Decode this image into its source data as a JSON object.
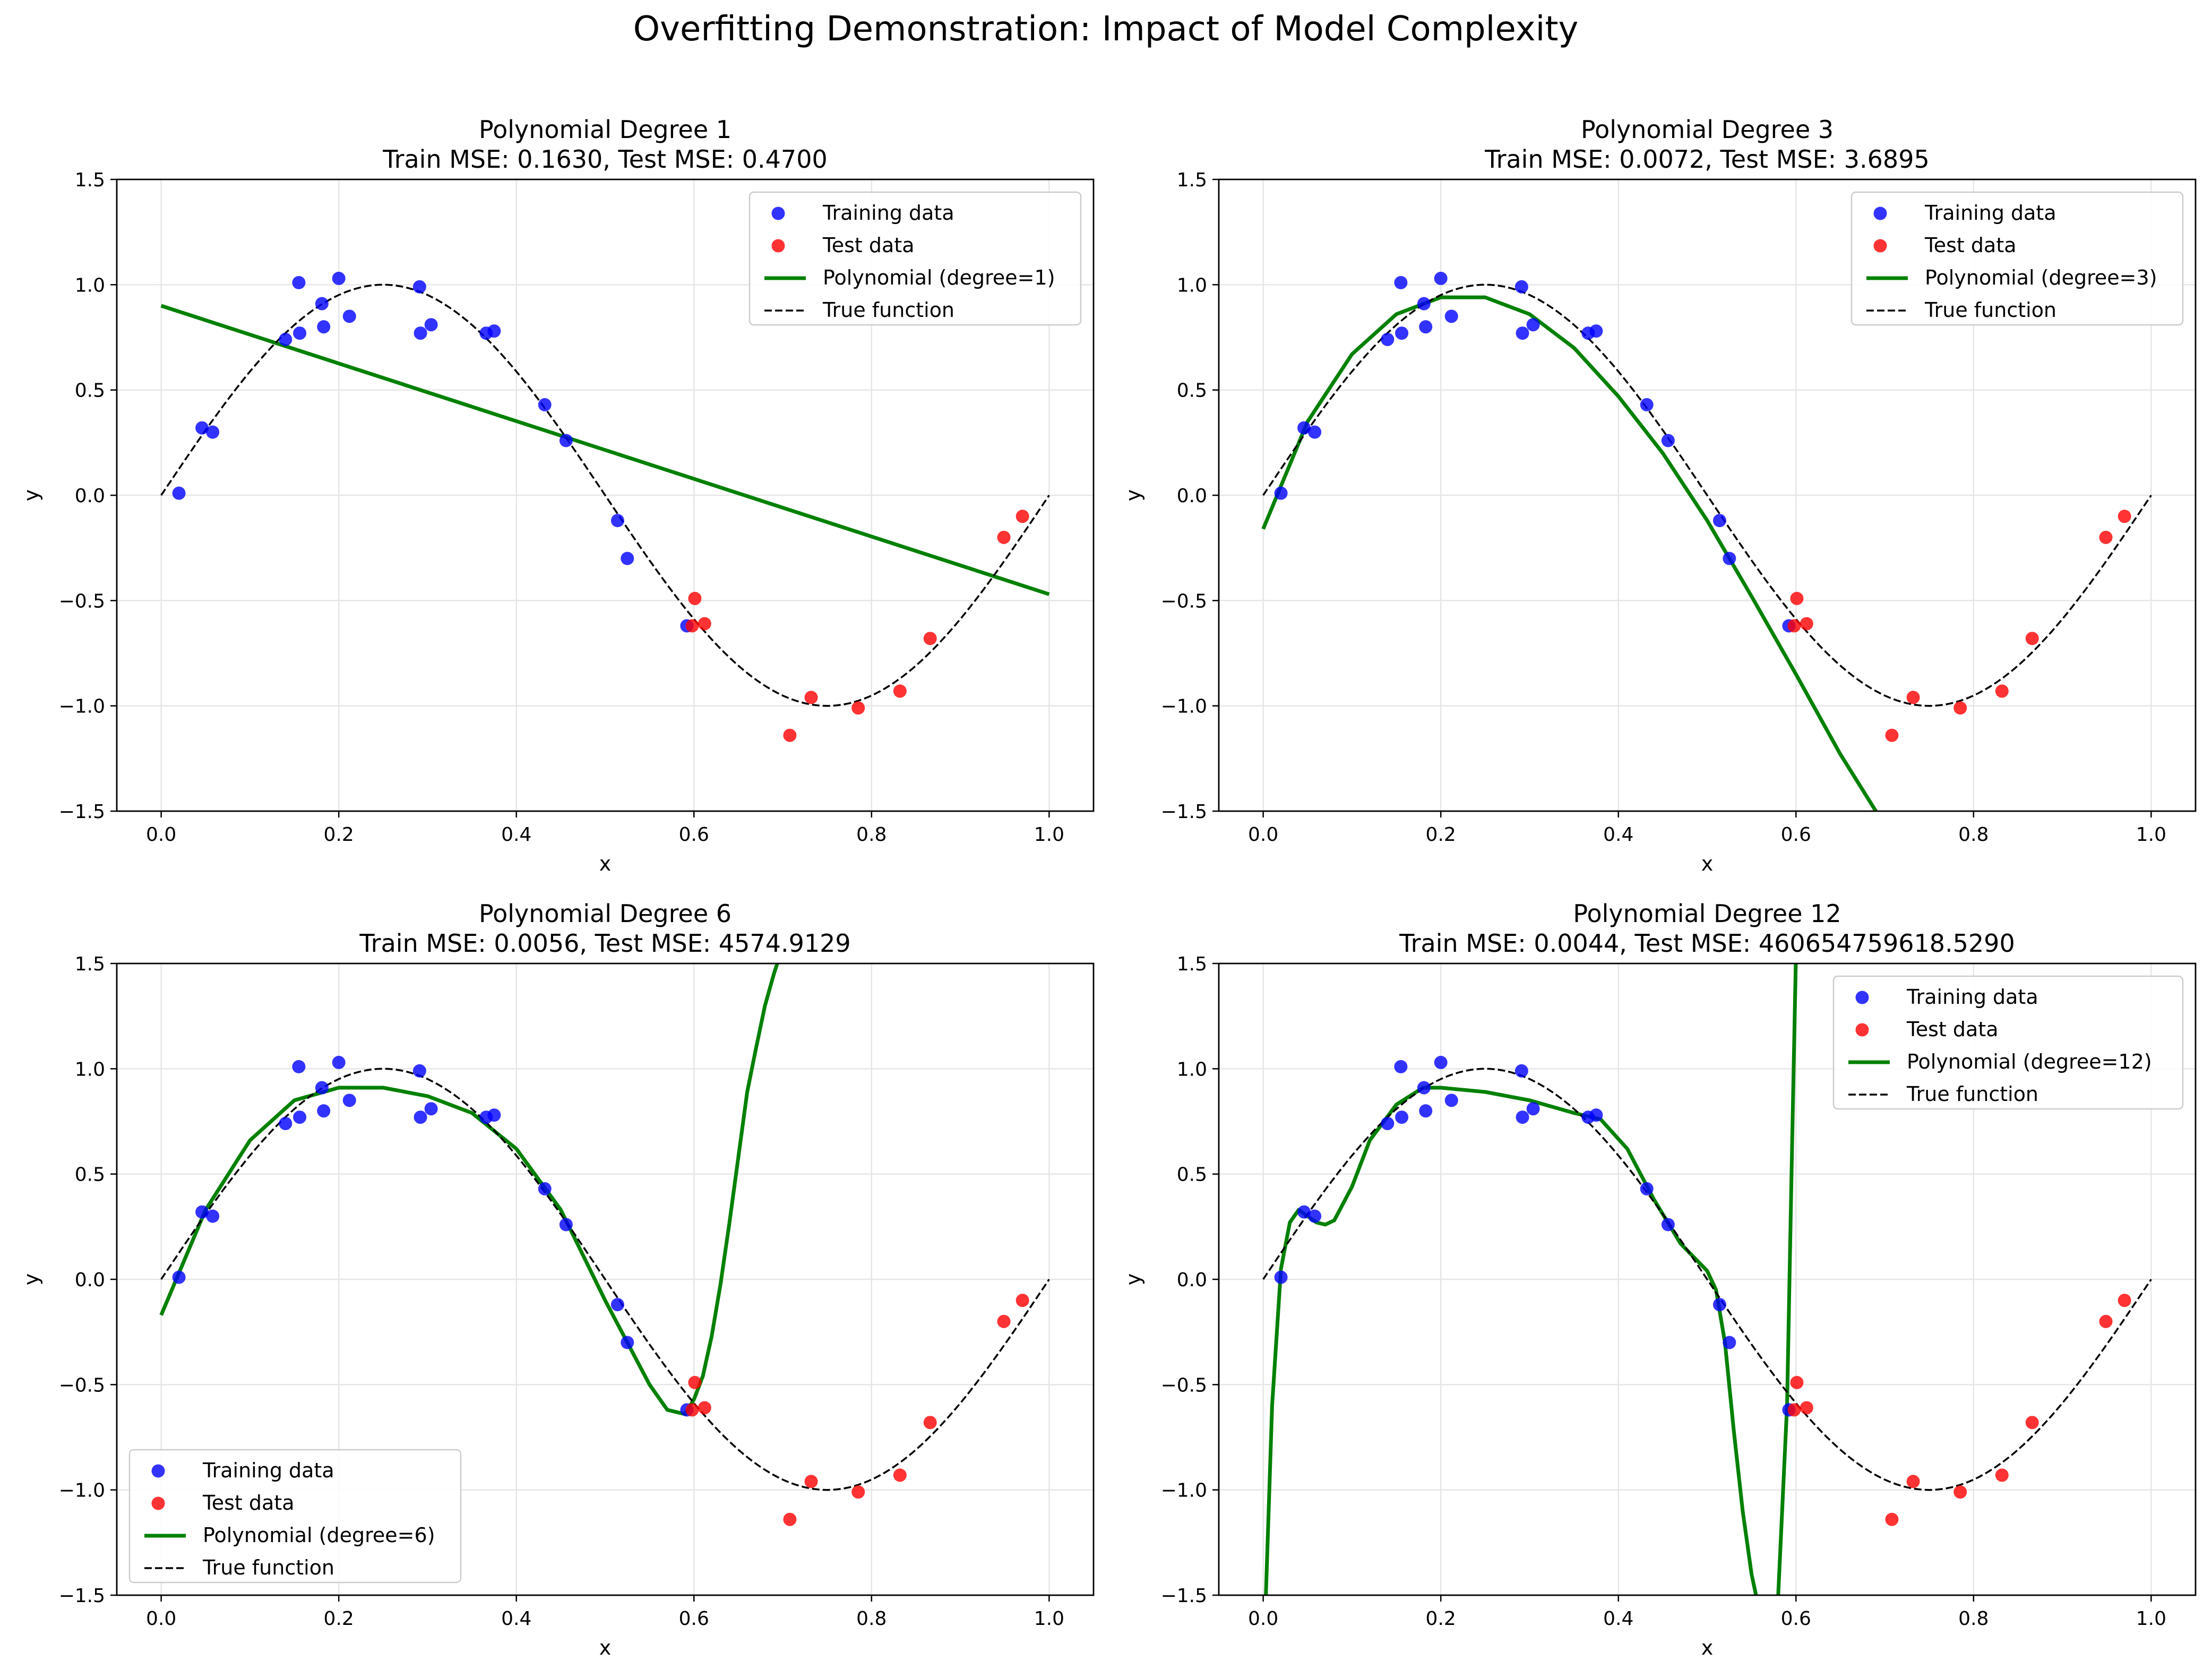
{
  "figure": {
    "suptitle": "Overfitting Demonstration: Impact of Model Complexity"
  },
  "chart_data": [
    {
      "type": "scatter",
      "title": "Polynomial Degree 1",
      "subtitle": "Train MSE: 0.1630, Test MSE: 0.4700",
      "xlabel": "x",
      "ylabel": "y",
      "xlim": [
        -0.05,
        1.05
      ],
      "ylim": [
        -1.5,
        1.5
      ],
      "xticks": [
        0.0,
        0.2,
        0.4,
        0.6,
        0.8,
        1.0
      ],
      "xtick_labels": [
        "0.0",
        "0.2",
        "0.4",
        "0.6",
        "0.8",
        "1.0"
      ],
      "yticks": [
        -1.5,
        -1.0,
        -0.5,
        0.0,
        0.5,
        1.0,
        1.5
      ],
      "ytick_labels": [
        "−1.5",
        "−1.0",
        "−0.5",
        "0.0",
        "0.5",
        "1.0",
        "1.5"
      ],
      "grid": true,
      "legend_position": "upper right",
      "degree": 1,
      "series": [
        {
          "name": "Training data",
          "kind": "scatter",
          "color": "#0000ff",
          "x": [
            0.02,
            0.046,
            0.058,
            0.14,
            0.155,
            0.156,
            0.181,
            0.183,
            0.2,
            0.212,
            0.291,
            0.292,
            0.304,
            0.366,
            0.375,
            0.432,
            0.456,
            0.514,
            0.525,
            0.592
          ],
          "y": [
            0.01,
            0.32,
            0.3,
            0.74,
            1.01,
            0.77,
            0.91,
            0.8,
            1.03,
            0.85,
            0.99,
            0.77,
            0.81,
            0.77,
            0.78,
            0.43,
            0.26,
            -0.12,
            -0.3,
            -0.62
          ]
        },
        {
          "name": "Test data",
          "kind": "scatter",
          "color": "#ff0000",
          "x": [
            0.598,
            0.601,
            0.612,
            0.708,
            0.732,
            0.785,
            0.832,
            0.866,
            0.949,
            0.97
          ],
          "y": [
            -0.62,
            -0.49,
            -0.61,
            -1.14,
            -0.96,
            -1.01,
            -0.93,
            -0.68,
            -0.2,
            -0.1
          ]
        },
        {
          "name": "Polynomial (degree=1)",
          "kind": "line",
          "color": "#008000",
          "x": [
            0.0,
            1.0
          ],
          "y": [
            0.9,
            -0.47
          ]
        },
        {
          "name": "True function",
          "kind": "dashed-line",
          "color": "#000000",
          "function": "sin(2*pi*x)",
          "x_range": [
            0.0,
            1.0
          ]
        }
      ]
    },
    {
      "type": "scatter",
      "title": "Polynomial Degree 3",
      "subtitle": "Train MSE: 0.0072, Test MSE: 3.6895",
      "xlabel": "x",
      "ylabel": "y",
      "xlim": [
        -0.05,
        1.05
      ],
      "ylim": [
        -1.5,
        1.5
      ],
      "xticks": [
        0.0,
        0.2,
        0.4,
        0.6,
        0.8,
        1.0
      ],
      "xtick_labels": [
        "0.0",
        "0.2",
        "0.4",
        "0.6",
        "0.8",
        "1.0"
      ],
      "yticks": [
        -1.5,
        -1.0,
        -0.5,
        0.0,
        0.5,
        1.0,
        1.5
      ],
      "ytick_labels": [
        "−1.5",
        "−1.0",
        "−0.5",
        "0.0",
        "0.5",
        "1.0",
        "1.5"
      ],
      "grid": true,
      "legend_position": "upper right",
      "degree": 3,
      "series": [
        {
          "name": "Training data",
          "kind": "scatter",
          "color": "#0000ff",
          "x": [
            0.02,
            0.046,
            0.058,
            0.14,
            0.155,
            0.156,
            0.181,
            0.183,
            0.2,
            0.212,
            0.291,
            0.292,
            0.304,
            0.366,
            0.375,
            0.432,
            0.456,
            0.514,
            0.525,
            0.592
          ],
          "y": [
            0.01,
            0.32,
            0.3,
            0.74,
            1.01,
            0.77,
            0.91,
            0.8,
            1.03,
            0.85,
            0.99,
            0.77,
            0.81,
            0.77,
            0.78,
            0.43,
            0.26,
            -0.12,
            -0.3,
            -0.62
          ]
        },
        {
          "name": "Test data",
          "kind": "scatter",
          "color": "#ff0000",
          "x": [
            0.598,
            0.601,
            0.612,
            0.708,
            0.732,
            0.785,
            0.832,
            0.866,
            0.949,
            0.97
          ],
          "y": [
            -0.62,
            -0.49,
            -0.61,
            -1.14,
            -0.96,
            -1.01,
            -0.93,
            -0.68,
            -0.2,
            -0.1
          ]
        },
        {
          "name": "Polynomial (degree=3)",
          "kind": "line",
          "color": "#008000",
          "x": [
            0.0,
            0.05,
            0.1,
            0.15,
            0.2,
            0.25,
            0.3,
            0.35,
            0.4,
            0.45,
            0.5,
            0.55,
            0.6,
            0.65,
            0.69
          ],
          "y": [
            -0.16,
            0.35,
            0.67,
            0.86,
            0.94,
            0.94,
            0.86,
            0.7,
            0.47,
            0.2,
            -0.12,
            -0.48,
            -0.85,
            -1.23,
            -1.5
          ]
        },
        {
          "name": "True function",
          "kind": "dashed-line",
          "color": "#000000",
          "function": "sin(2*pi*x)",
          "x_range": [
            0.0,
            1.0
          ]
        }
      ]
    },
    {
      "type": "scatter",
      "title": "Polynomial Degree 6",
      "subtitle": "Train MSE: 0.0056, Test MSE: 4574.9129",
      "xlabel": "x",
      "ylabel": "y",
      "xlim": [
        -0.05,
        1.05
      ],
      "ylim": [
        -1.5,
        1.5
      ],
      "xticks": [
        0.0,
        0.2,
        0.4,
        0.6,
        0.8,
        1.0
      ],
      "xtick_labels": [
        "0.0",
        "0.2",
        "0.4",
        "0.6",
        "0.8",
        "1.0"
      ],
      "yticks": [
        -1.5,
        -1.0,
        -0.5,
        0.0,
        0.5,
        1.0,
        1.5
      ],
      "ytick_labels": [
        "−1.5",
        "−1.0",
        "−0.5",
        "0.0",
        "0.5",
        "1.0",
        "1.5"
      ],
      "grid": true,
      "legend_position": "lower left",
      "degree": 6,
      "series": [
        {
          "name": "Training data",
          "kind": "scatter",
          "color": "#0000ff",
          "x": [
            0.02,
            0.046,
            0.058,
            0.14,
            0.155,
            0.156,
            0.181,
            0.183,
            0.2,
            0.212,
            0.291,
            0.292,
            0.304,
            0.366,
            0.375,
            0.432,
            0.456,
            0.514,
            0.525,
            0.592
          ],
          "y": [
            0.01,
            0.32,
            0.3,
            0.74,
            1.01,
            0.77,
            0.91,
            0.8,
            1.03,
            0.85,
            0.99,
            0.77,
            0.81,
            0.77,
            0.78,
            0.43,
            0.26,
            -0.12,
            -0.3,
            -0.62
          ]
        },
        {
          "name": "Test data",
          "kind": "scatter",
          "color": "#ff0000",
          "x": [
            0.598,
            0.601,
            0.612,
            0.708,
            0.732,
            0.785,
            0.832,
            0.866,
            0.949,
            0.97
          ],
          "y": [
            -0.62,
            -0.49,
            -0.61,
            -1.14,
            -0.96,
            -1.01,
            -0.93,
            -0.68,
            -0.2,
            -0.1
          ]
        },
        {
          "name": "Polynomial (degree=6)",
          "kind": "line",
          "color": "#008000",
          "x": [
            0.0,
            0.05,
            0.1,
            0.15,
            0.2,
            0.25,
            0.3,
            0.35,
            0.4,
            0.45,
            0.5,
            0.55,
            0.57,
            0.59,
            0.6,
            0.61,
            0.62,
            0.63,
            0.64,
            0.65,
            0.66,
            0.67,
            0.68,
            0.69,
            0.7
          ],
          "y": [
            -0.17,
            0.33,
            0.66,
            0.85,
            0.91,
            0.91,
            0.87,
            0.79,
            0.62,
            0.33,
            -0.1,
            -0.5,
            -0.62,
            -0.64,
            -0.57,
            -0.46,
            -0.27,
            -0.02,
            0.27,
            0.58,
            0.89,
            1.1,
            1.3,
            1.45,
            1.58
          ]
        },
        {
          "name": "True function",
          "kind": "dashed-line",
          "color": "#000000",
          "function": "sin(2*pi*x)",
          "x_range": [
            0.0,
            1.0
          ]
        }
      ]
    },
    {
      "type": "scatter",
      "title": "Polynomial Degree 12",
      "subtitle": "Train MSE: 0.0044, Test MSE: 460654759618.5290",
      "xlabel": "x",
      "ylabel": "y",
      "xlim": [
        -0.05,
        1.05
      ],
      "ylim": [
        -1.5,
        1.5
      ],
      "xticks": [
        0.0,
        0.2,
        0.4,
        0.6,
        0.8,
        1.0
      ],
      "xtick_labels": [
        "0.0",
        "0.2",
        "0.4",
        "0.6",
        "0.8",
        "1.0"
      ],
      "yticks": [
        -1.5,
        -1.0,
        -0.5,
        0.0,
        0.5,
        1.0,
        1.5
      ],
      "ytick_labels": [
        "−1.5",
        "−1.0",
        "−0.5",
        "0.0",
        "0.5",
        "1.0",
        "1.5"
      ],
      "grid": true,
      "legend_position": "upper right",
      "degree": 12,
      "series": [
        {
          "name": "Training data",
          "kind": "scatter",
          "color": "#0000ff",
          "x": [
            0.02,
            0.046,
            0.058,
            0.14,
            0.155,
            0.156,
            0.181,
            0.183,
            0.2,
            0.212,
            0.291,
            0.292,
            0.304,
            0.366,
            0.375,
            0.432,
            0.456,
            0.514,
            0.525,
            0.592
          ],
          "y": [
            0.01,
            0.32,
            0.3,
            0.74,
            1.01,
            0.77,
            0.91,
            0.8,
            1.03,
            0.85,
            0.99,
            0.77,
            0.81,
            0.77,
            0.78,
            0.43,
            0.26,
            -0.12,
            -0.3,
            -0.62
          ]
        },
        {
          "name": "Test data",
          "kind": "scatter",
          "color": "#ff0000",
          "x": [
            0.598,
            0.601,
            0.612,
            0.708,
            0.732,
            0.785,
            0.832,
            0.866,
            0.949,
            0.97
          ],
          "y": [
            -0.62,
            -0.49,
            -0.61,
            -1.14,
            -0.96,
            -1.01,
            -0.93,
            -0.68,
            -0.2,
            -0.1
          ]
        },
        {
          "name": "Polynomial (degree=12)",
          "kind": "line",
          "color": "#008000",
          "x": [
            0.003,
            0.01,
            0.02,
            0.03,
            0.04,
            0.05,
            0.06,
            0.07,
            0.08,
            0.1,
            0.12,
            0.15,
            0.18,
            0.2,
            0.25,
            0.3,
            0.35,
            0.38,
            0.41,
            0.44,
            0.47,
            0.5,
            0.51,
            0.52,
            0.53,
            0.54,
            0.55,
            0.555,
            0.56,
            0.57,
            0.58,
            0.59,
            0.595,
            0.6
          ],
          "y": [
            -1.5,
            -0.6,
            0.05,
            0.27,
            0.33,
            0.3,
            0.27,
            0.26,
            0.28,
            0.44,
            0.66,
            0.83,
            0.91,
            0.91,
            0.89,
            0.85,
            0.79,
            0.76,
            0.62,
            0.38,
            0.17,
            0.04,
            -0.05,
            -0.3,
            -0.72,
            -1.1,
            -1.4,
            -1.5,
            -1.55,
            -1.55,
            -1.5,
            -0.6,
            0.5,
            1.55
          ]
        },
        {
          "name": "True function",
          "kind": "dashed-line",
          "color": "#000000",
          "function": "sin(2*pi*x)",
          "x_range": [
            0.0,
            1.0
          ]
        }
      ]
    }
  ]
}
